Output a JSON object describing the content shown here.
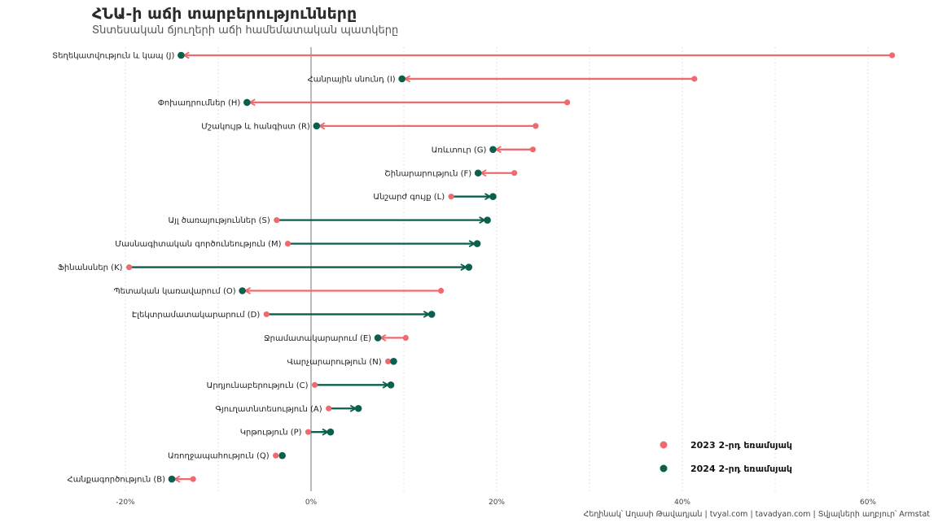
{
  "title": "ՀՆԱ-ի աճի տարբերությունները",
  "subtitle": "Տնտեսական ճյուղերի աճի համեմատական պատկերը",
  "caption": "Հեղինակ՝ Աղասի Թավադյան   |   tvyal.com   |   tavadyan.com   |   Տվյալների աղբյուր՝ Armstat",
  "colors": {
    "y2023": "#ef6a6e",
    "y2024": "#0b5f4d",
    "axis": "#777777",
    "grid": "#d8d8d8"
  },
  "chart_data": {
    "type": "dumbbell",
    "title": "ՀՆԱ-ի աճի տարբերությունները",
    "subtitle": "Տնտեսական ճյուղերի աճի համեմատական պատկերը",
    "xlim": [
      -0.22,
      0.65
    ],
    "xticks": [
      -0.2,
      0,
      0.2,
      0.4,
      0.6
    ],
    "xtick_labels": [
      "-20%",
      "0%",
      "20%",
      "40%",
      "60%"
    ],
    "grid": "vertical dotted",
    "legend_position": "bottom-right",
    "series": [
      {
        "name": "2023 2-րդ եռամսյակ"
      },
      {
        "name": "2024 2-րդ եռամսյակ"
      }
    ],
    "categories": [
      "Տեղեկատվություն և կապ (J)",
      "Հանրային սնունդ (I)",
      "Փոխադրումներ (H)",
      "Մշակույթ և հանգիստ (R)",
      "Առևտուր (G)",
      "Շինարարություն (F)",
      "Անշարժ գույք (L)",
      "Այլ ծառայություններ (S)",
      "Մասնագիտական գործունեություն (M)",
      "Ֆինանսներ (K)",
      "Պետական կառավարում (O)",
      "Էլեկտրամատակարարում (D)",
      "Ջրամատակարարում (E)",
      "Վարչարարություն (N)",
      "Արդյունաբերություն (C)",
      "Գյուղատնտեսություն (A)",
      "Կրթություն (P)",
      "Առողջապահություն (Q)",
      "Հանքագործություն (B)"
    ],
    "values_2023": [
      0.626,
      0.413,
      0.276,
      0.242,
      0.239,
      0.219,
      0.151,
      -0.037,
      -0.025,
      -0.196,
      0.14,
      -0.048,
      0.102,
      0.083,
      0.004,
      0.019,
      -0.003,
      -0.038,
      -0.127
    ],
    "values_2024": [
      -0.14,
      0.098,
      -0.069,
      0.006,
      0.196,
      0.18,
      0.196,
      0.19,
      0.179,
      0.17,
      -0.074,
      0.13,
      0.072,
      0.089,
      0.086,
      0.051,
      0.021,
      -0.031,
      -0.15
    ]
  }
}
